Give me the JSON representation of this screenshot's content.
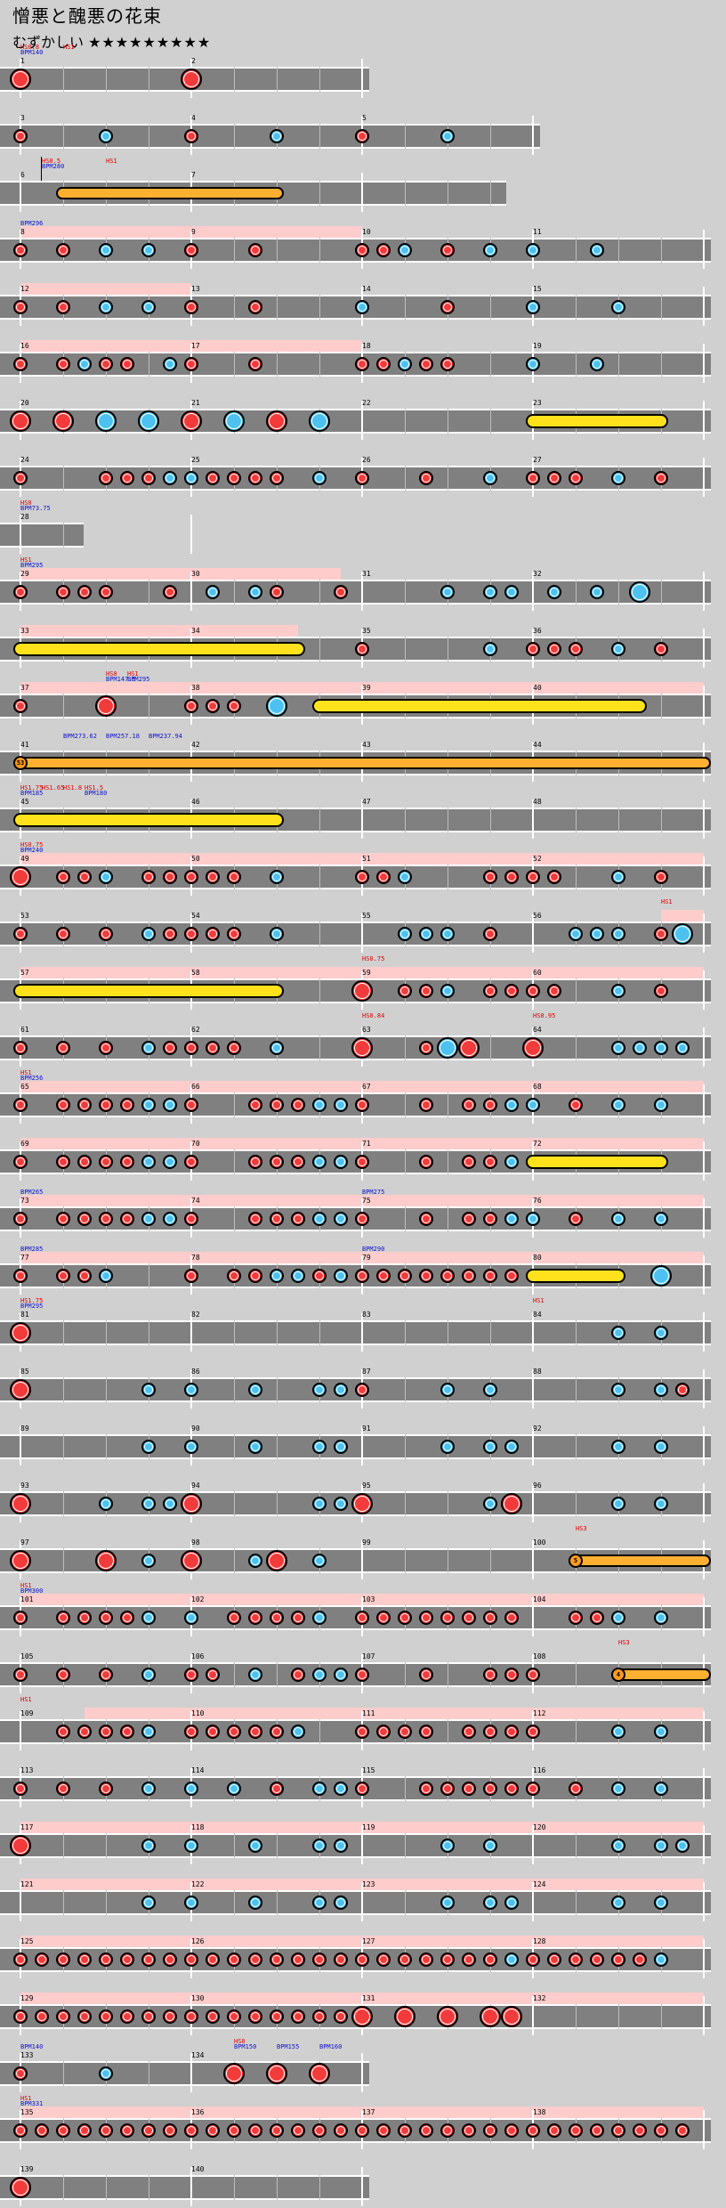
{
  "title": "憎悪と醜悪の花束",
  "difficulty_label": "むずかしい",
  "difficulty_stars": "★★★★★★★★★",
  "colors": {
    "don": "#f33b3b",
    "ka": "#4dc2f0",
    "roll": "#ffe21c",
    "balloon": "#ffb030",
    "gogo": "#ffcccc",
    "lane": "#808080"
  },
  "rows": [
    {
      "m": [
        1,
        2
      ],
      "k": 2,
      "n": "B0 ~ B8",
      "hs": [
        [
          0,
          "HS0.8"
        ],
        [
          2,
          "HS1"
        ]
      ],
      "bpm": [
        [
          0,
          "BPM140"
        ]
      ]
    },
    {
      "m": [
        3,
        4,
        5
      ],
      "k": 3,
      "n": "r0 ~ k4 ~ ~ ~ r8 ~ k12 ~ ~ ~ r16 ~ k20"
    },
    {
      "m": [
        6,
        7
      ],
      "k": 2.8,
      "n": "O2-12",
      "hs": [
        [
          1,
          "HS0.5"
        ],
        [
          4,
          "HS1"
        ]
      ],
      "bpm": [
        [
          1,
          "BPM280"
        ]
      ],
      "gline": 1
    },
    {
      "m": [
        8,
        9,
        10,
        11
      ],
      "k": 4,
      "g": [
        0,
        16
      ],
      "n": "r0 r2 k4 ~ k6 ~ r8 ~ r11 ~ r16 r17 k18 ~ r20 ~ k22 ~ k24 ~ k27",
      "bpm": [
        [
          0,
          "BPM296"
        ]
      ]
    },
    {
      "m": [
        12,
        13,
        14,
        15
      ],
      "k": 4,
      "g": [
        0,
        8
      ],
      "n": "r0 r2 k4 ~ k6 ~ r8 ~ r11 ~ k16 ~ ~ ~ r20 ~ k24 ~ ~ ~ k28"
    },
    {
      "m": [
        16,
        17,
        18,
        19
      ],
      "k": 4,
      "g": [
        0,
        16
      ],
      "n": "r0 r2 k3 r4 r5 k7 ~ r8 ~ r11 ~ r16 r17 k18 r19 r20 ~ k24 ~ k27"
    },
    {
      "m": [
        20,
        21,
        22,
        23
      ],
      "k": 4,
      "n": "R0 R2 K4 K6 R8 K10 R12 K14 ~ Y24-30"
    },
    {
      "m": [
        24,
        25,
        26,
        27
      ],
      "k": 4,
      "n": "r0 ~ r4 r5 r6 k7 k8 r9 ~ r10 r11 r12 ~ k14 ~ r16 ~ r19 ~ k22 ~ r24 r25 r26 ~ k28 ~ r30"
    },
    {
      "m": [
        28
      ],
      "k": 0.33,
      "n": "",
      "hs": [
        [
          0,
          "HS0"
        ]
      ],
      "bpm": [
        [
          0,
          "BPM73.75"
        ]
      ]
    },
    {
      "m": [
        29,
        30,
        31,
        32
      ],
      "k": 4,
      "g": [
        0,
        15
      ],
      "n": "r0 r2 r3 r4 ~ r7 ~ k9 ~ k11 ~ r12 ~ r15 ~ k20 ~ k22 ~ k23 ~ k25 ~ k27 K29",
      "hs": [
        [
          0,
          "HS1"
        ]
      ],
      "bpm": [
        [
          0,
          "BPM295"
        ]
      ]
    },
    {
      "m": [
        33,
        34,
        35,
        36
      ],
      "k": 4,
      "g": [
        0,
        13
      ],
      "n": "Y0-13 ~ r16 ~ k22 ~ r24 r25 r26 ~ k28 ~ r30",
      "gm": [
        16,
        28
      ]
    },
    {
      "m": [
        37,
        38,
        39,
        40
      ],
      "k": 4,
      "g": [
        0,
        32
      ],
      "n": "r0 ~ R4 ~ r8 r9 r10 ~ K12 Y14-29",
      "hs": [
        [
          4,
          "HS0"
        ],
        [
          5,
          "HS1"
        ]
      ],
      "bpm": [
        [
          4,
          "BPM147.5"
        ],
        [
          5,
          "BPM295"
        ]
      ]
    },
    {
      "m": [
        41,
        42,
        43,
        44
      ],
      "k": 4,
      "n": "O0-32",
      "bpm": [
        [
          2,
          "BPM273.62"
        ],
        [
          4,
          "BPM257.18"
        ],
        [
          6,
          "BPM237.94"
        ]
      ],
      "bal": [
        0,
        "53"
      ]
    },
    {
      "m": [
        45,
        46,
        47,
        48
      ],
      "k": 4,
      "n": "Y0-12",
      "hs": [
        [
          0,
          "HS1.75"
        ],
        [
          1,
          "HS1.65"
        ],
        [
          2,
          "HS1.8"
        ],
        [
          3,
          "HS1.5"
        ]
      ],
      "bpm": [
        [
          0,
          "BPM185"
        ],
        [
          3,
          "BPM180"
        ]
      ]
    },
    {
      "m": [
        49,
        50,
        51,
        52
      ],
      "k": 4,
      "g": [
        0,
        32
      ],
      "n": "R0 r2 r3 k4 ~ r6 r7 r8 r9 r10 ~ k12 ~ r16 r17 k18 ~ r22 r23 r24 r25 ~ k28 ~ r30",
      "hs": [
        [
          0,
          "HS0.75"
        ]
      ],
      "bpm": [
        [
          0,
          "BPM240"
        ]
      ]
    },
    {
      "m": [
        53,
        54,
        55,
        56
      ],
      "k": 4,
      "g": [
        30,
        32
      ],
      "n": "r0 ~ r2 ~ r4 ~ k6 r7 r8 r9 r10 ~ k12 ~ k18 k19 k20 ~ r22 ~ k26 k27 k28 ~ r30 K31",
      "hs": [
        [
          30,
          "HS1"
        ]
      ]
    },
    {
      "m": [
        57,
        58,
        59,
        60
      ],
      "k": 4,
      "g": [
        0,
        32
      ],
      "n": "Y0-12 ~ R16 ~ r18 r19 k20 ~ r22 r23 r24 r25 ~ k28 ~ r30",
      "hs": [
        [
          16,
          "HS0.75"
        ]
      ]
    },
    {
      "m": [
        61,
        62,
        63,
        64
      ],
      "k": 4,
      "n": "r0 ~ r2 ~ r4 ~ k6 r7 r8 r9 r10 ~ k12 ~ R16 ~ r19 K20 R21 ~ R24 ~ k28 k29 k30 ~ k31",
      "hs": [
        [
          16,
          "HS0.84"
        ],
        [
          24,
          "HS0.95"
        ]
      ]
    },
    {
      "m": [
        65,
        66,
        67,
        68
      ],
      "k": 4,
      "g": [
        0,
        32
      ],
      "n": "r0 ~ r2 r3 r4 r5 k6 k7 r8 ~ r11 r12 r13 k14 k15 ~ r16 ~ r19 ~ r21 r22 k23 k24 ~ r26 ~ k28 ~ k30",
      "hs": [
        [
          0,
          "HS1"
        ]
      ],
      "bpm": [
        [
          0,
          "BPM256"
        ]
      ]
    },
    {
      "m": [
        69,
        70,
        71,
        72
      ],
      "k": 4,
      "g": [
        0,
        32
      ],
      "n": "r0 ~ r2 r3 r4 r5 k6 k7 r8 ~ r11 r12 r13 k14 k15 ~ r16 ~ r19 ~ r21 r22 k23 k24 ~ Y24-30"
    },
    {
      "m": [
        73,
        74,
        75,
        76
      ],
      "k": 4,
      "g": [
        0,
        32
      ],
      "n": "r0 ~ r2 r3 r4 r5 k6 k7 r8 ~ r11 r12 r13 k14 k15 ~ r16 ~ r19 ~ r21 r22 k23 k24 ~ r26 ~ k28 ~ k30",
      "bpm": [
        [
          0,
          "BPM265"
        ],
        [
          16,
          "BPM275"
        ]
      ]
    },
    {
      "m": [
        77,
        78,
        79,
        80
      ],
      "k": 4,
      "g": [
        0,
        32
      ],
      "n": "r0 ~ r2 r3 k4 ~ r8 ~ r10 r11 k12 k13 r14 k15 ~ r16 r17 r18 r19 r20 r21 r22 r23 ~ Y24-28 ~ K30",
      "bpm": [
        [
          0,
          "BPM285"
        ],
        [
          16,
          "BPM290"
        ]
      ]
    },
    {
      "m": [
        81,
        82,
        83,
        84
      ],
      "k": 4,
      "n": "R0 ~ k28 ~ k30",
      "hs": [
        [
          0,
          "HS1.75"
        ],
        [
          24,
          "HS1"
        ]
      ],
      "bpm": [
        [
          0,
          "BPM295"
        ]
      ]
    },
    {
      "m": [
        85,
        86,
        87,
        88
      ],
      "k": 4,
      "n": "R0 ~ k6 ~ k8 ~ k11 ~ k14 k15 ~ r16 ~ k20 ~ k22 ~ k28 ~ k30 r31"
    },
    {
      "m": [
        89,
        90,
        91,
        92
      ],
      "k": 4,
      "n": "k6 ~ k8 ~ k11 ~ k14 k15 ~ k20 ~ k22 ~ k23 ~ k28 ~ k30"
    },
    {
      "m": [
        93,
        94,
        95,
        96
      ],
      "k": 4,
      "n": "R0 ~ k4 ~ k6 ~ k7 R8 ~ k14 k15 R16 ~ k22 R23 ~ k28 ~ k30"
    },
    {
      "m": [
        97,
        98,
        99,
        100
      ],
      "k": 4,
      "n": "R0 ~ R4 ~ k6 ~ R8 ~ k11 R12 ~ k14 ~ O26-32",
      "hs": [
        [
          26,
          "HS3"
        ]
      ],
      "bal": [
        26,
        "5"
      ]
    },
    {
      "m": [
        101,
        102,
        103,
        104
      ],
      "k": 4,
      "g": [
        0,
        32
      ],
      "n": "r0 ~ r2 r3 r4 r5 k6 ~ k8 ~ r10 r11 r12 r13 k14 ~ r16 r17 r18 r19 r20 r21 r22 r23 ~ r26 r27 k28 ~ k30",
      "hs": [
        [
          0,
          "HS1"
        ]
      ],
      "bpm": [
        [
          0,
          "BPM300"
        ]
      ]
    },
    {
      "m": [
        105,
        106,
        107,
        108
      ],
      "k": 4,
      "n": "r0 ~ r2 ~ r4 ~ k6 ~ r8 ~ r9 ~ k11 ~ r13 k14 k15 ~ r16 ~ r19 ~ r22 r23 ~ r24 ~ O28-32",
      "hs": [
        [
          28,
          "HS3"
        ]
      ],
      "bal": [
        28,
        "4"
      ]
    },
    {
      "m": [
        109,
        110,
        111,
        112
      ],
      "k": 4,
      "g": [
        3,
        32
      ],
      "n": "r2 r3 r4 r5 k6 ~ r8 r9 r10 ~ r11 r12 k13 ~ r16 r17 r18 r19 ~ r21 r22 r23 ~ r24 ~ k28 ~ k30",
      "hs": [
        [
          0,
          "HS1"
        ]
      ]
    },
    {
      "m": [
        113,
        114,
        115,
        116
      ],
      "k": 4,
      "n": "r0 ~ r2 ~ r4 ~ k6 ~ k8 ~ k10 ~ r12 ~ k14 k15 ~ r16 ~ r19 r20 r21 r22 r23 r24 ~ r26 ~ k28 ~ k30"
    },
    {
      "m": [
        117,
        118,
        119,
        120
      ],
      "k": 4,
      "g": [
        0,
        32
      ],
      "n": "R0 ~ k6 ~ k8 ~ k11 ~ k14 k15 ~ k20 ~ k22 ~ k28 ~ k30 k31"
    },
    {
      "m": [
        121,
        122,
        123,
        124
      ],
      "k": 4,
      "g": [
        0,
        32
      ],
      "n": "k6 ~ k8 ~ k11 ~ k14 k15 ~ k20 ~ k22 ~ k23 ~ k28 ~ k30"
    },
    {
      "m": [
        125,
        126,
        127,
        128
      ],
      "k": 4,
      "g": [
        0,
        32
      ],
      "n": "r0 r1 r2 r3 r4 r5 r6 r7 r8 r9 r10 r11 r12 r13 r14 r15 r16 r17 r18 r19 r20 r21 r22 k23 r24 r25 r26 r27 r28 r29 k30"
    },
    {
      "m": [
        129,
        130,
        131,
        132
      ],
      "k": 4,
      "g": [
        0,
        32
      ],
      "n": "r0 r1 r2 r3 r4 r5 r6 r7 r8 r9 r10 r11 r12 r13 r14 r15 R16 R18 R20 R22 R23"
    },
    {
      "m": [
        133,
        134
      ],
      "k": 2,
      "n": "r0 ~ k4 ~ R10 ~ R12 ~ R14",
      "hs": [
        [
          10,
          "HS0"
        ]
      ],
      "bpm": [
        [
          0,
          "BPM140"
        ],
        [
          10,
          "BPM150"
        ],
        [
          12,
          "BPM155"
        ],
        [
          14,
          "BPM160"
        ]
      ]
    },
    {
      "m": [
        135,
        136,
        137,
        138
      ],
      "k": 4,
      "g": [
        0,
        32
      ],
      "n": "r0 r1 r2 r3 r4 r5 r6 r7 r8 r9 r10 r11 r12 r13 r14 r15 r16 r17 r18 r19 r20 r21 r22 r23 r24 r25 r26 r27 r28 r29 r30 r31",
      "hs": [
        [
          0,
          "HS1"
        ]
      ],
      "bpm": [
        [
          0,
          "BPM331"
        ]
      ]
    },
    {
      "m": [
        139,
        140
      ],
      "k": 2,
      "n": "R0"
    }
  ]
}
